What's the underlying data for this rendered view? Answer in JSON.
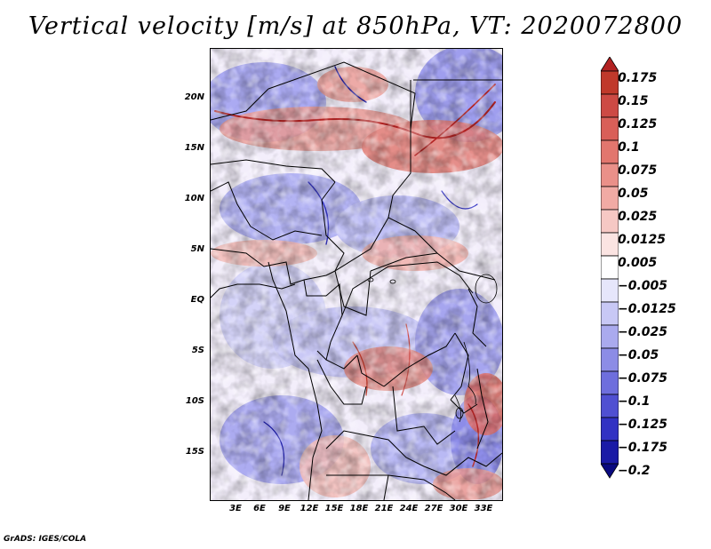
{
  "title": "Vertical velocity [m/s] at 850hPa, VT: 2020072800",
  "credit": "GrADS: IGES/COLA",
  "map": {
    "lat_labels": [
      "20N",
      "15N",
      "10N",
      "5N",
      "EQ",
      "5S",
      "10S",
      "15S"
    ],
    "lon_labels": [
      "3E",
      "6E",
      "9E",
      "12E",
      "15E",
      "18E",
      "21E",
      "24E",
      "27E",
      "30E",
      "33E"
    ]
  },
  "colorbar": {
    "labels": [
      "0.175",
      "0.15",
      "0.125",
      "0.1",
      "0.075",
      "0.05",
      "0.025",
      "0.0125",
      "0.005",
      "−0.005",
      "−0.0125",
      "−0.025",
      "−0.05",
      "−0.075",
      "−0.1",
      "−0.125",
      "−0.175",
      "−0.2"
    ],
    "colors": [
      "#b22222",
      "#c0392b",
      "#cd4a44",
      "#d95f58",
      "#e2766e",
      "#ea9089",
      "#f1aaa4",
      "#f6c8c4",
      "#fbe4e2",
      "#ffffff",
      "#e6e6fb",
      "#c8c8f5",
      "#aaaaee",
      "#8c8ce6",
      "#6e6edd",
      "#5050d2",
      "#3232c3",
      "#1a1aa6",
      "#0a0a80"
    ]
  }
}
